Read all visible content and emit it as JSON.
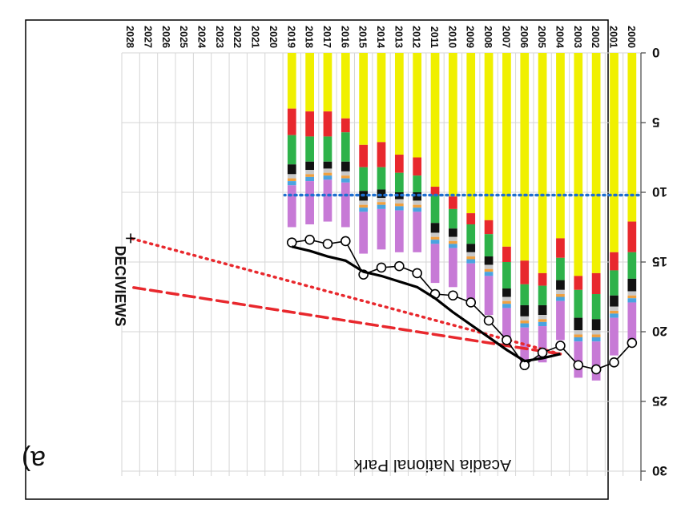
{
  "panel_label": "a)",
  "chart_data": {
    "type": "bar",
    "title": "Acadia National Park",
    "ylabel": "DECIVIEWS",
    "xlabel": "",
    "ylim": [
      0,
      30
    ],
    "yticks": [
      0,
      5,
      10,
      15,
      20,
      25,
      30
    ],
    "categories": [
      "2000",
      "2001",
      "2002",
      "2003",
      "2004",
      "2005",
      "2006",
      "2007",
      "2008",
      "2009",
      "2010",
      "2011",
      "2012",
      "2013",
      "2014",
      "2015",
      "2016",
      "2017",
      "2018",
      "2019",
      "2020",
      "2021",
      "2022",
      "2023",
      "2024",
      "2025",
      "2026",
      "2027",
      "2028"
    ],
    "stacked_bar_years": [
      "2000",
      "2001",
      "2002",
      "2003",
      "2004",
      "2005",
      "2006",
      "2007",
      "2008",
      "2009",
      "2010",
      "2011",
      "2012",
      "2013",
      "2014",
      "2015",
      "2016",
      "2017",
      "2018",
      "2019"
    ],
    "component_colors": [
      "#f0f000",
      "#e8282d",
      "#2eb24a",
      "#111111",
      "#c8c8c8",
      "#f0a040",
      "#4aa3e0",
      "#c77ad6"
    ],
    "series": [
      {
        "name": "",
        "kind": "stacked_bar",
        "components": [
          [
            12.1,
            14.3,
            15.8,
            16.0,
            13.3,
            15.8,
            14.9,
            13.9,
            12.0,
            11.5,
            10.3,
            9.6,
            7.5,
            7.3,
            6.4,
            6.6,
            4.7,
            4.2,
            4.2,
            4.0
          ],
          [
            2.2,
            1.3,
            1.5,
            1.0,
            1.4,
            0.9,
            1.7,
            1.1,
            1.0,
            0.8,
            0.9,
            0.6,
            1.3,
            1.3,
            1.8,
            1.6,
            1.0,
            1.8,
            1.8,
            1.9
          ],
          [
            1.9,
            1.8,
            1.8,
            2.0,
            1.6,
            1.4,
            1.5,
            1.9,
            1.6,
            1.4,
            1.4,
            2.0,
            1.2,
            1.4,
            1.6,
            1.7,
            2.1,
            1.8,
            1.8,
            2.1
          ],
          [
            0.9,
            0.8,
            0.8,
            0.9,
            0.7,
            0.7,
            0.8,
            0.6,
            0.6,
            0.6,
            0.6,
            0.7,
            0.6,
            0.5,
            0.6,
            0.7,
            0.7,
            0.5,
            0.6,
            0.7
          ],
          [
            0.3,
            0.3,
            0.3,
            0.3,
            0.3,
            0.3,
            0.3,
            0.3,
            0.3,
            0.3,
            0.3,
            0.3,
            0.3,
            0.3,
            0.3,
            0.3,
            0.3,
            0.3,
            0.3,
            0.3
          ],
          [
            0.2,
            0.2,
            0.2,
            0.2,
            0.2,
            0.2,
            0.2,
            0.2,
            0.2,
            0.2,
            0.2,
            0.2,
            0.2,
            0.2,
            0.2,
            0.2,
            0.2,
            0.2,
            0.2,
            0.2
          ],
          [
            0.3,
            0.3,
            0.3,
            0.3,
            0.3,
            0.3,
            0.3,
            0.3,
            0.3,
            0.3,
            0.3,
            0.3,
            0.3,
            0.3,
            0.3,
            0.3,
            0.3,
            0.3,
            0.3,
            0.3
          ],
          [
            2.7,
            2.7,
            2.8,
            2.6,
            2.8,
            2.6,
            2.7,
            2.7,
            2.8,
            2.7,
            2.8,
            2.8,
            2.9,
            3.0,
            2.9,
            3.0,
            3.2,
            3.0,
            3.1,
            3.0
          ]
        ]
      },
      {
        "name": "",
        "kind": "line_markers",
        "color": "#000000",
        "x": [
          "2000",
          "2001",
          "2002",
          "2003",
          "2004",
          "2005",
          "2006",
          "2007",
          "2008",
          "2009",
          "2010",
          "2011",
          "2012",
          "2013",
          "2014",
          "2015",
          "2016",
          "2017",
          "2018",
          "2019"
        ],
        "values": [
          20.8,
          22.2,
          22.7,
          22.4,
          21.0,
          21.5,
          22.4,
          20.6,
          19.2,
          17.9,
          17.4,
          17.3,
          15.8,
          15.3,
          15.4,
          15.9,
          13.5,
          13.7,
          13.4,
          13.6
        ]
      },
      {
        "name": "",
        "kind": "line",
        "color": "#000000",
        "x": [
          "2004",
          "2005",
          "2006",
          "2007",
          "2008",
          "2009",
          "2010",
          "2011",
          "2012",
          "2013",
          "2014",
          "2015",
          "2016",
          "2017",
          "2018",
          "2019"
        ],
        "values": [
          21.6,
          21.9,
          22.1,
          21.3,
          20.4,
          19.5,
          18.6,
          17.6,
          16.8,
          16.4,
          16.0,
          15.7,
          14.9,
          14.6,
          14.2,
          13.9
        ]
      },
      {
        "name": "",
        "kind": "dotted_line",
        "color": "#e8282d",
        "x": [
          "2004",
          "2028"
        ],
        "values": [
          21.6,
          13.3
        ]
      },
      {
        "name": "",
        "kind": "dashed_line",
        "color": "#e8282d",
        "x": [
          "2004",
          "2028"
        ],
        "values": [
          21.6,
          16.8
        ]
      },
      {
        "name": "",
        "kind": "dotted_reference",
        "color": "#1e6fd0",
        "value": 10.2
      }
    ],
    "end_marker": {
      "x": "2028",
      "value": 13.3,
      "symbol": "+"
    },
    "grid": true,
    "legend": "none"
  }
}
